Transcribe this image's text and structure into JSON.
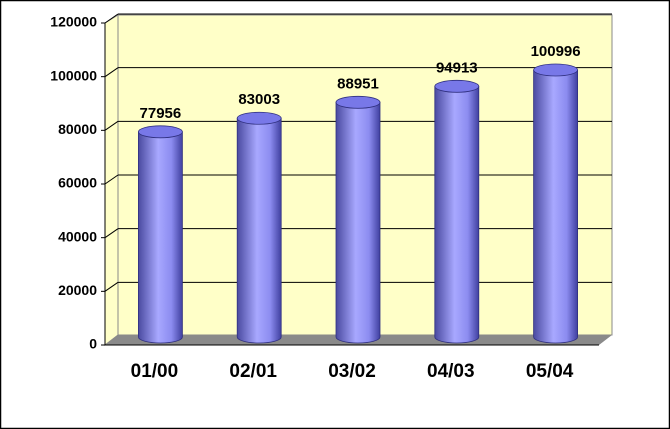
{
  "chart_data": {
    "type": "bar",
    "categories": [
      "01/00",
      "02/01",
      "03/02",
      "04/03",
      "05/04"
    ],
    "values": [
      77956,
      83003,
      88951,
      94913,
      100996
    ],
    "color": "#8080ff",
    "ylim": [
      0,
      120000
    ],
    "yticks": [
      0,
      20000,
      40000,
      60000,
      80000,
      100000,
      120000
    ],
    "grid": true
  }
}
